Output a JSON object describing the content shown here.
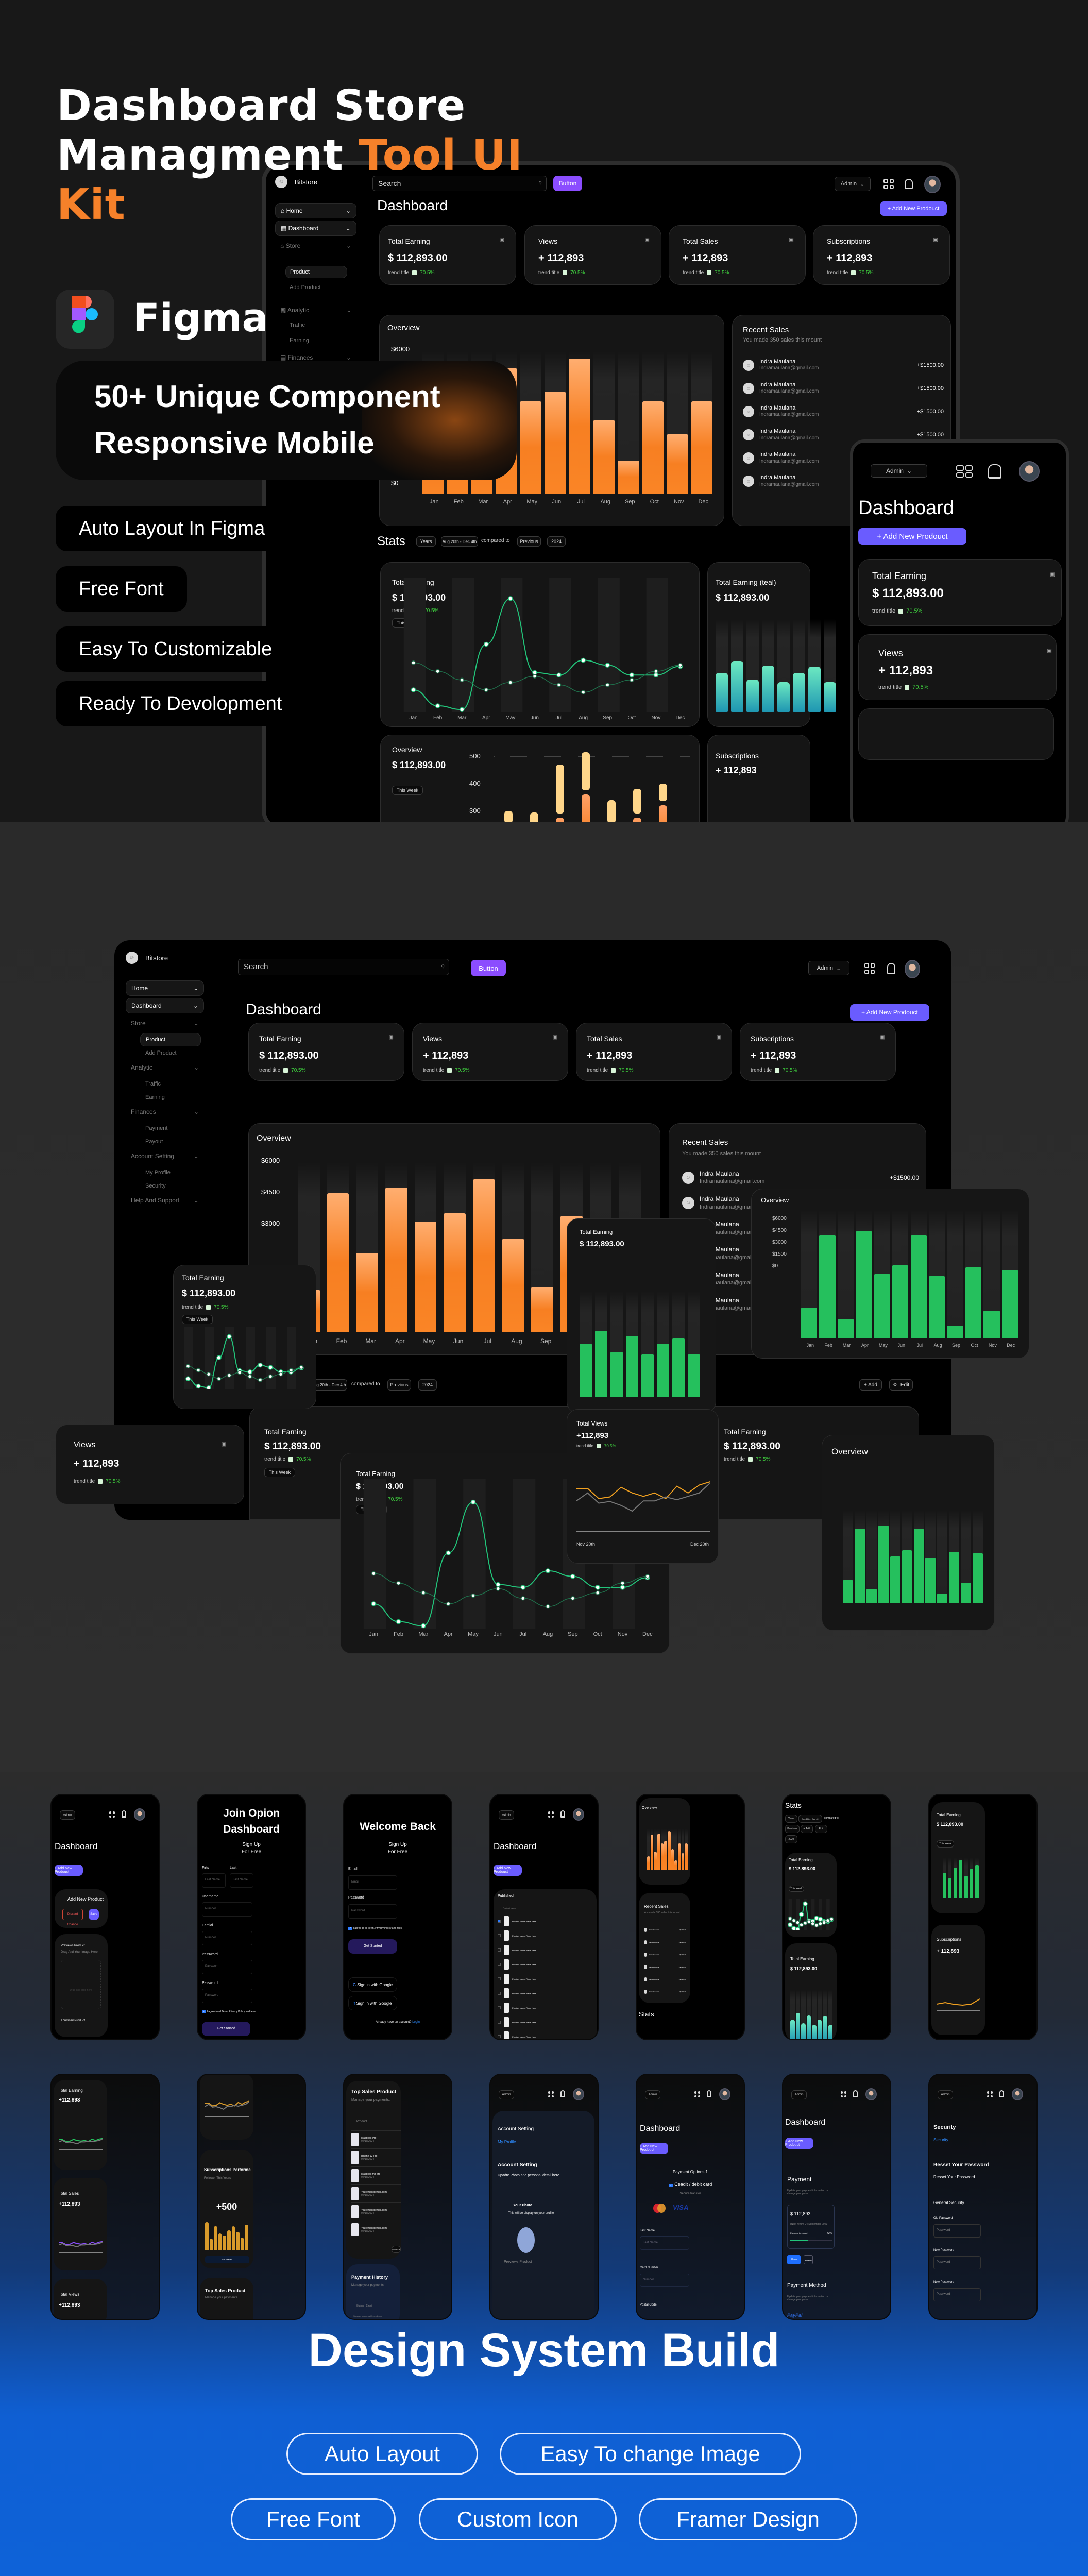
{
  "hero": {
    "title_line1": "Dashboard Store",
    "title_line2_white": "Managment ",
    "title_line2_orange": "Tool UI",
    "title_line3_orange": "Kit",
    "figma_label": "Figma",
    "pillbox_line1": "50+ Unique Component",
    "pillbox_line2": "Responsive Mobile",
    "features": [
      "Auto Layout In Figma",
      "Free Font",
      "Easy To Customizable",
      "Ready To Devolopment"
    ],
    "accent_orange": "#f6812a"
  },
  "dashboard": {
    "brand": "Bitstore",
    "search_placeholder": "Search",
    "button_label": "Button",
    "admin_label": "Admin",
    "page_title": "Dashboard",
    "add_product_label": "+ Add New Prodouct",
    "sidebar": [
      {
        "label": "Home",
        "icon": "home-icon",
        "state": "active"
      },
      {
        "label": "Dashboard",
        "icon": "dashboard-icon",
        "state": "active"
      },
      {
        "label": "Store",
        "icon": "store-icon",
        "state": "dim"
      },
      {
        "label": "Product",
        "state": "sub-active"
      },
      {
        "label": "Add Product",
        "state": "sub"
      },
      {
        "label": "Analytic",
        "icon": "analytic-icon",
        "state": "dim"
      },
      {
        "label": "Traffic",
        "state": "sub"
      },
      {
        "label": "Earning",
        "state": "sub"
      },
      {
        "label": "Finances",
        "icon": "finances-icon",
        "state": "dim"
      },
      {
        "label": "Payment",
        "state": "sub"
      },
      {
        "label": "Payout",
        "state": "sub"
      },
      {
        "label": "Account Setting",
        "icon": "gear-icon",
        "state": "dim"
      },
      {
        "label": "My Profile",
        "state": "sub"
      },
      {
        "label": "Security",
        "state": "sub"
      },
      {
        "label": "Help And Support",
        "icon": "help-icon",
        "state": "dim"
      }
    ],
    "stat_cards": [
      {
        "title": "Total Earning",
        "value": "$ 112,893.00",
        "trend_title": "trend title",
        "trend": "70.5%"
      },
      {
        "title": "Views",
        "value": "+ 112,893",
        "trend_title": "trend title",
        "trend": "70.5%"
      },
      {
        "title": "Total Sales",
        "value": "+ 112,893",
        "trend_title": "trend title",
        "trend": "70.5%"
      },
      {
        "title": "Subscriptions",
        "value": "+ 112,893",
        "trend_title": "trend title",
        "trend": "70.5%"
      }
    ],
    "overview_title": "Overview",
    "recent_sales": {
      "title": "Recent Sales",
      "subtitle": "You made 350 sales this mount",
      "rows": [
        {
          "name": "Indra Maulana",
          "email": "Indramaulana@gmail.com",
          "amount": "+$1500.00"
        },
        {
          "name": "Indra Maulana",
          "email": "Indramaulana@gmail.com",
          "amount": "+$1500.00"
        },
        {
          "name": "Indra Maulana",
          "email": "Indramaulana@gmail.com",
          "amount": "+$1500.00"
        },
        {
          "name": "Indra Maulana",
          "email": "Indramaulana@gmail.com",
          "amount": "+$1500.00"
        },
        {
          "name": "Indra Maulana",
          "email": "Indramaulana@gmail.com",
          "amount": "+$1500.00"
        },
        {
          "name": "Indra Maulana",
          "email": "Indramaulana@gmail.com",
          "amount": "+$1500.00"
        }
      ]
    },
    "stats": {
      "title": "Stats",
      "period": "Years",
      "range": "Aug 20th - Dec 4th",
      "compared_to": "compared to",
      "previous": "Previous",
      "year": "2024",
      "add_label": "+ Add",
      "edit_label": "Edit",
      "this_week": "This Week"
    },
    "total_views_title": "Total Views",
    "total_views_value": "+112,893",
    "date_start": "Nov 20th",
    "date_end": "Dec 20th"
  },
  "chart_data": [
    {
      "type": "bar",
      "title": "Overview",
      "categories": [
        "Jan",
        "Feb",
        "Mar",
        "Apr",
        "May",
        "Jun",
        "Jul",
        "Aug",
        "Sep",
        "Oct",
        "Nov",
        "Dec"
      ],
      "values": [
        2000,
        5200,
        2700,
        5300,
        3900,
        4300,
        5700,
        3100,
        1400,
        3900,
        2500,
        3900
      ],
      "ylabel_ticks": [
        "$6000",
        "$4500",
        "$3000",
        "$1500",
        "$0"
      ],
      "ylim": [
        0,
        6000
      ],
      "color": "#f77f22"
    },
    {
      "type": "bar",
      "title": "Overview (green)",
      "categories": [
        "Jan",
        "Feb",
        "Mar",
        "Apr",
        "May",
        "Jun",
        "Jul",
        "Aug",
        "Sep",
        "Oct",
        "Nov",
        "Dec"
      ],
      "values": [
        1450,
        4800,
        900,
        5000,
        3000,
        3400,
        4800,
        2900,
        600,
        3300,
        1300,
        3200
      ],
      "ylabel_ticks": [
        "$6000",
        "$4500",
        "$3000",
        "$1500",
        "$0"
      ],
      "ylim": [
        0,
        6000
      ],
      "color": "#25c05d"
    },
    {
      "type": "line",
      "title": "Total Earning",
      "categories": [
        "Jan",
        "Feb",
        "Mar",
        "Apr",
        "May",
        "Jun",
        "Jul",
        "Aug",
        "Sep",
        "Oct",
        "Nov",
        "Dec"
      ],
      "series": [
        {
          "name": "current",
          "values": [
            18,
            5,
            2,
            55,
            92,
            32,
            30,
            42,
            38,
            30,
            30,
            37
          ]
        },
        {
          "name": "previous",
          "values": [
            40,
            33,
            26,
            18,
            24,
            29,
            22,
            16,
            22,
            26,
            33,
            38
          ]
        }
      ],
      "ylim": [
        0,
        100
      ],
      "color": "#22c47a"
    },
    {
      "type": "bar",
      "title": "Total Earning (range)",
      "categories": [
        "1",
        "2",
        "3",
        "4",
        "5",
        "6",
        "7"
      ],
      "series": [
        {
          "name": "light",
          "values": [
            300,
            295,
            470,
            515,
            340,
            380,
            400
          ]
        },
        {
          "name": "dark",
          "values": [
            240,
            230,
            275,
            360,
            240,
            275,
            320
          ]
        }
      ],
      "ylabel_ticks": [
        "500",
        "400",
        "300"
      ],
      "ylim": [
        200,
        520
      ]
    },
    {
      "type": "bar",
      "title": "Total Earning (teal)",
      "categories": [
        "1",
        "2",
        "3",
        "4",
        "5",
        "6",
        "7",
        "8"
      ],
      "values": [
        42,
        55,
        35,
        50,
        32,
        42,
        49,
        32
      ],
      "color": "#3fcfc0"
    },
    {
      "type": "line",
      "title": "Total Views",
      "x": [
        "Nov 20th",
        "Dec 20th"
      ],
      "series": [
        {
          "name": "current",
          "values": [
            70,
            70,
            52,
            55,
            72,
            62,
            56,
            62,
            52,
            74,
            62,
            76,
            82
          ]
        },
        {
          "name": "previous",
          "values": [
            48,
            62,
            44,
            47,
            40,
            30,
            48,
            48,
            55,
            50,
            56,
            62,
            80
          ]
        }
      ],
      "color": "#f0a020"
    }
  ],
  "mobile_screens": {
    "add_product": {
      "title": "Add New Product",
      "discard": "Discard Change",
      "save": "Save",
      "previews": "Previews Product",
      "previews_sub": "Drag And Your Image Here",
      "drop": "Drag and drop here",
      "thumb": "Thumnail Product",
      "thumb_sub": "Drag And Your Image Here"
    },
    "signup": {
      "title": "Join Opion Dashboard",
      "subtitle": "Sign Up For Free",
      "first": "Firts",
      "last": "Last",
      "first_ph": "Last Name",
      "last_ph": "Last Name",
      "username": "Username",
      "username_ph": "Number",
      "email": "Eamial",
      "email_ph": "Number",
      "password": "Password",
      "password_ph": "Password",
      "password2": "Password",
      "agree": "I agree to all Term, Privacy Policy and fees",
      "cta": "Get Started"
    },
    "login": {
      "title": "Welcome Back",
      "subtitle": "Sign Up For Free",
      "email": "Email",
      "email_ph": "Email",
      "password": "Password",
      "password_ph": "Password",
      "agree": "I agree to all Term, Privacy Policy and fees",
      "cta": "Get Started",
      "google": "Sign in with Google",
      "facebook": "Sign in with Google",
      "have_account": "Already have an account?",
      "login": "Login"
    },
    "products": {
      "published": "Published",
      "col": "Product Name",
      "item": "Product Name Place Here",
      "count": 10
    },
    "top_sales": {
      "title": "Top Sales Product",
      "subtitle": "Manage your payments.",
      "col": "Product",
      "rows": [
        {
          "name": "Macbook Pro",
          "date": "02/10/2024"
        },
        {
          "name": "Iphone 12 Pro",
          "date": "02/10/2024"
        },
        {
          "name": "Macbook m3 pro",
          "date": "02/10/2024"
        },
        {
          "name": "Youremail@email.com",
          "date": "02/10/2024"
        },
        {
          "name": "Youremail@email.com",
          "date": "02/10/2024"
        },
        {
          "name": "Youremail@email.com",
          "date": "02/10/2024"
        }
      ],
      "prev": "Previous"
    },
    "payment_history": {
      "title": "Payment History",
      "subtitle": "Manage your payments.",
      "status": "Status",
      "email": "Email",
      "row_status": "Succses",
      "row_email": "Youremail@email.com"
    },
    "subs_perf": {
      "title": "Subscriptions Performe",
      "subtitle": "Follower This Years",
      "value": "+500",
      "cta": "Get Started"
    },
    "account": {
      "title": "Account Setting",
      "link": "My Profile",
      "title2": "Account Setting",
      "desc": "Upadte Photo and personal detail here",
      "photo": "Your Photo",
      "photo_desc": "This wil be display on your profile",
      "previews": "Previews Product",
      "previews_sub": "Drag And Your Image Here"
    },
    "payment_options": {
      "title": "Payment Options 1",
      "card": "Ceadit / debit card",
      "secure": "Secure transfer",
      "visa": "VISA",
      "last_name": "Last Name",
      "last_name_ph": "Last Name",
      "card_number": "Card Number",
      "card_number_ph": "Number",
      "postal": "Postal Code",
      "postal_ph": "Number"
    },
    "payment": {
      "title": "Payment",
      "desc": "Update your payment information or change your plans",
      "amount": "$ 112,893",
      "renew": "(Next renew 24 September 2023)",
      "threshold": "Payment threshold",
      "pct": "43%",
      "plans": "Plans",
      "manage": "Manage",
      "method": "Payment Method",
      "method_desc": "Update your payment information or change your plans",
      "paypal": "PayPal"
    },
    "security": {
      "title": "Security",
      "link": "Security",
      "reset_title": "Resset Your Password",
      "reset_sub": "Resset Your Password",
      "general": "General Security",
      "old": "Old Password",
      "new1": "New Password",
      "new2": "New Password",
      "ph": "Password"
    },
    "small_cards": {
      "total_earning": "Total Earning",
      "total_sales": "Total Sales",
      "total_views": "Total Views",
      "value": "+112,893",
      "subscriptions": "Subscriptions",
      "recent_sales": "Recent Sales"
    }
  },
  "footer": {
    "title": "Design System Build",
    "pills_row1": [
      "Auto Layout",
      "Easy To change Image"
    ],
    "pills_row2": [
      "Free Font",
      "Custom Icon",
      "Framer Design"
    ]
  }
}
